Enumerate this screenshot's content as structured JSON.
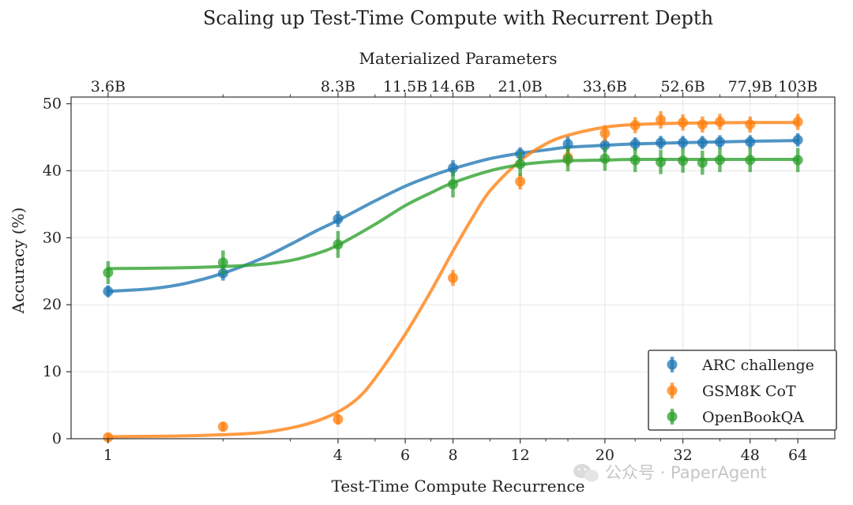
{
  "watermark": "公众号 · PaperAgent",
  "chart_data": {
    "type": "line",
    "title": "Scaling up Test-Time Compute with Recurrent Depth",
    "xlabel": "Test-Time Compute Recurrence",
    "ylabel": "Accuracy (%)",
    "x2label": "Materialized Parameters",
    "x_scale": "log2",
    "xlim": [
      0.8,
      80
    ],
    "ylim": [
      0,
      51
    ],
    "grid": true,
    "legend_position": "bottom-right",
    "x_ticks": [
      1,
      4,
      6,
      8,
      12,
      20,
      32,
      48,
      64
    ],
    "x_tick_labels": [
      "1",
      "4",
      "6",
      "8",
      "12",
      "20",
      "32",
      "48",
      "64"
    ],
    "y_ticks": [
      0,
      10,
      20,
      30,
      40,
      50
    ],
    "y_tick_labels": [
      "0",
      "10",
      "20",
      "30",
      "40",
      "50"
    ],
    "x2_tick_positions": [
      1,
      4,
      6,
      8,
      12,
      20,
      32,
      48,
      64
    ],
    "x2_tick_labels": [
      "3.6B",
      "8.3B",
      "11.5B",
      "14.6B",
      "21.0B",
      "33.6B",
      "52.6B",
      "77.9B",
      "103B"
    ],
    "x": [
      1,
      2,
      4,
      8,
      12,
      16,
      20,
      24,
      28,
      32,
      36,
      40,
      48,
      64
    ],
    "series": [
      {
        "name": "ARC challenge",
        "color": "#1f77b4",
        "values": [
          22.0,
          24.7,
          32.8,
          40.4,
          42.5,
          44.0,
          43.8,
          44.0,
          44.2,
          44.2,
          44.2,
          44.3,
          44.3,
          44.6
        ],
        "errors": [
          0.9,
          1.1,
          1.2,
          1.2,
          1.0,
          1.1,
          1.0,
          1.0,
          1.0,
          1.0,
          1.0,
          1.0,
          1.0,
          1.0
        ],
        "fit": [
          [
            1,
            22.0
          ],
          [
            1.3,
            22.4
          ],
          [
            1.6,
            23.2
          ],
          [
            2,
            24.7
          ],
          [
            2.5,
            26.8
          ],
          [
            3,
            29.0
          ],
          [
            3.5,
            31.0
          ],
          [
            4,
            32.6
          ],
          [
            5,
            35.5
          ],
          [
            6,
            37.7
          ],
          [
            7,
            39.2
          ],
          [
            8,
            40.3
          ],
          [
            10,
            41.8
          ],
          [
            12,
            42.6
          ],
          [
            14,
            43.1
          ],
          [
            16,
            43.5
          ],
          [
            20,
            43.8
          ],
          [
            24,
            44.0
          ],
          [
            32,
            44.2
          ],
          [
            40,
            44.3
          ],
          [
            48,
            44.4
          ],
          [
            64,
            44.5
          ]
        ]
      },
      {
        "name": "GSM8K CoT",
        "color": "#ff7f0e",
        "values": [
          0.2,
          1.8,
          2.9,
          24.0,
          38.4,
          42.0,
          45.6,
          46.8,
          47.6,
          47.2,
          46.9,
          47.3,
          46.9,
          47.3
        ],
        "errors": [
          0.6,
          0.7,
          0.8,
          1.2,
          1.2,
          1.3,
          1.2,
          1.2,
          1.3,
          1.2,
          1.2,
          1.2,
          1.2,
          1.2
        ],
        "fit": [
          [
            1,
            0.3
          ],
          [
            1.5,
            0.4
          ],
          [
            2,
            0.6
          ],
          [
            2.5,
            0.9
          ],
          [
            3,
            1.6
          ],
          [
            3.5,
            2.6
          ],
          [
            4,
            4.0
          ],
          [
            4.5,
            6.0
          ],
          [
            5,
            9.0
          ],
          [
            6,
            15.6
          ],
          [
            7,
            22.0
          ],
          [
            8,
            28.0
          ],
          [
            9,
            33.0
          ],
          [
            10,
            37.0
          ],
          [
            12,
            41.5
          ],
          [
            14,
            44.0
          ],
          [
            16,
            45.3
          ],
          [
            20,
            46.5
          ],
          [
            24,
            46.9
          ],
          [
            32,
            47.1
          ],
          [
            48,
            47.2
          ],
          [
            64,
            47.2
          ]
        ]
      },
      {
        "name": "OpenBookQA",
        "color": "#2ca02c",
        "values": [
          24.8,
          26.3,
          29.0,
          38.0,
          41.0,
          41.7,
          41.8,
          41.6,
          41.3,
          41.5,
          41.2,
          41.6,
          41.6,
          41.6
        ],
        "errors": [
          1.7,
          1.8,
          2.0,
          2.0,
          1.8,
          1.8,
          1.8,
          1.8,
          1.8,
          1.8,
          1.8,
          1.8,
          1.8,
          1.8
        ],
        "fit": [
          [
            1,
            25.4
          ],
          [
            1.5,
            25.5
          ],
          [
            2,
            25.7
          ],
          [
            2.5,
            26.0
          ],
          [
            3,
            26.6
          ],
          [
            3.5,
            27.6
          ],
          [
            4,
            28.9
          ],
          [
            5,
            32.0
          ],
          [
            6,
            34.8
          ],
          [
            7,
            36.7
          ],
          [
            8,
            38.2
          ],
          [
            10,
            40.0
          ],
          [
            12,
            40.9
          ],
          [
            14,
            41.3
          ],
          [
            16,
            41.5
          ],
          [
            20,
            41.6
          ],
          [
            24,
            41.7
          ],
          [
            32,
            41.7
          ],
          [
            48,
            41.7
          ],
          [
            64,
            41.7
          ]
        ]
      }
    ]
  }
}
